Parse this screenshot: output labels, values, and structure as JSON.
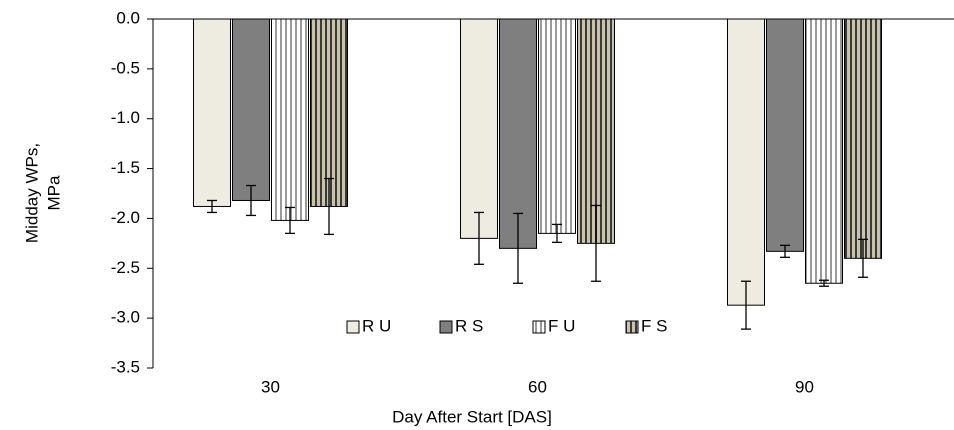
{
  "chart_data": {
    "type": "bar",
    "xlabel": "Day After Start [DAS]",
    "ylabel": [
      "Midday WPs,",
      "MPa"
    ],
    "categories": [
      "30",
      "60",
      "90"
    ],
    "series": [
      {
        "name": "R U",
        "color": "#eeebe0",
        "values": [
          -1.88,
          -2.2,
          -2.87
        ],
        "errors": [
          0.06,
          0.26,
          0.24
        ]
      },
      {
        "name": "R S",
        "color": "#7f7f7f",
        "values": [
          -1.82,
          -2.3,
          -2.33
        ],
        "errors": [
          0.15,
          0.35,
          0.06
        ]
      },
      {
        "name": "F U",
        "color": "#ffffff",
        "hatch": "vertical",
        "hatch_color": "#9a9a9a",
        "values": [
          -2.02,
          -2.15,
          -2.65
        ],
        "errors": [
          0.13,
          0.09,
          0.03
        ]
      },
      {
        "name": "F S",
        "color": "#c9c4a8",
        "hatch": "vertical",
        "hatch_color": "#3a3a3a",
        "values": [
          -1.88,
          -2.25,
          -2.4
        ],
        "errors": [
          0.28,
          0.38,
          0.19
        ]
      }
    ],
    "ylim": [
      -3.5,
      0
    ],
    "yticks": [
      {
        "value": -3.5,
        "label": "-3.5"
      },
      {
        "value": -3,
        "label": "-3.0"
      },
      {
        "value": -2.5,
        "label": "-2.5"
      },
      {
        "value": -2,
        "label": "-2.0"
      },
      {
        "value": -1.5,
        "label": "-1.5"
      },
      {
        "value": -1,
        "label": "-1.0"
      },
      {
        "value": -0.5,
        "label": "-0.5"
      },
      {
        "value": 0,
        "label": "0.0"
      }
    ],
    "grid": false,
    "legend": "bottom-center"
  }
}
